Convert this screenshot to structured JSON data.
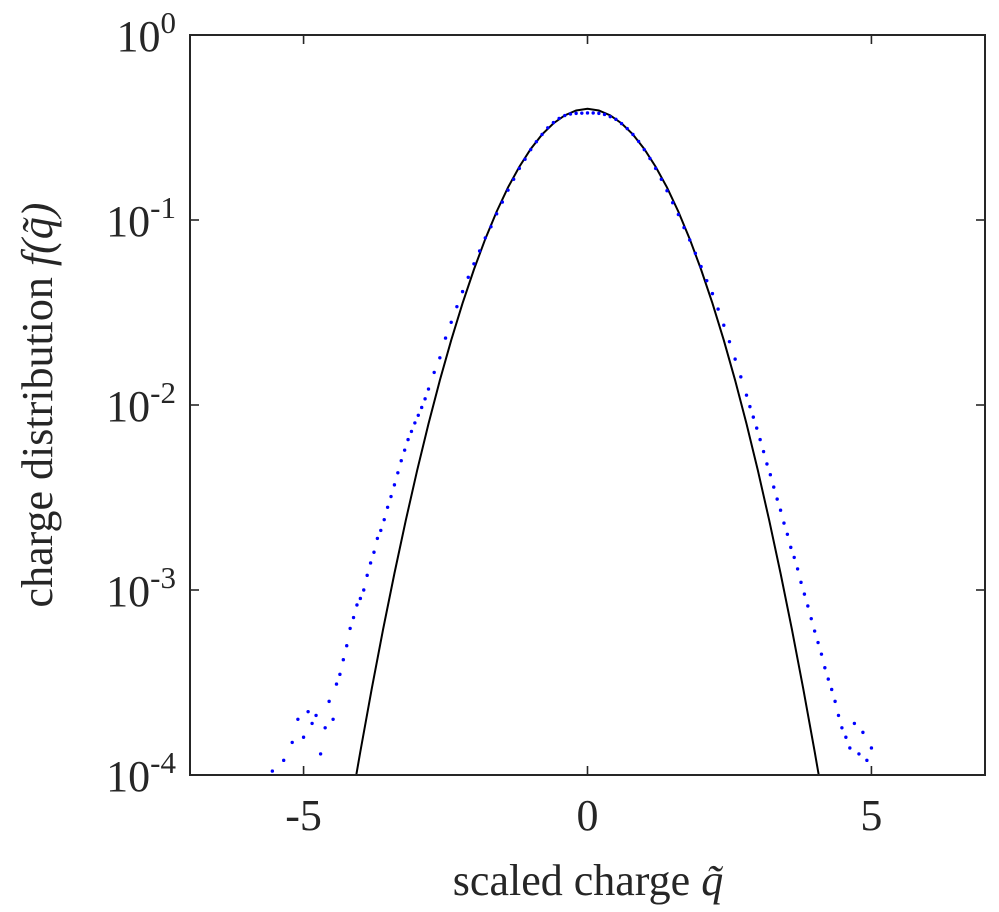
{
  "chart_data": {
    "type": "scatter",
    "xlabel": "scaled charge",
    "xlabel_symbol": "q̃",
    "ylabel": "charge distribution",
    "ylabel_symbol": "f(q̃)",
    "x_ticks": [
      "-5",
      "0",
      "5"
    ],
    "y_ticks": [
      {
        "value": 0.0001,
        "base": "10",
        "exp": "-4"
      },
      {
        "value": 0.001,
        "base": "10",
        "exp": "-3"
      },
      {
        "value": 0.01,
        "base": "10",
        "exp": "-2"
      },
      {
        "value": 0.1,
        "base": "10",
        "exp": "-1"
      },
      {
        "value": 1,
        "base": "10",
        "exp": "0"
      }
    ],
    "xlim": [
      -7,
      7
    ],
    "ylim": [
      0.0001,
      1
    ],
    "yscale": "log",
    "grid": false,
    "colors": {
      "data": "#0000ff",
      "fit": "#000000"
    },
    "series": [
      {
        "kind": "line",
        "color": "#000000",
        "x": [
          -4.1,
          -4.0,
          -3.8,
          -3.6,
          -3.4,
          -3.2,
          -3.0,
          -2.8,
          -2.6,
          -2.4,
          -2.2,
          -2.0,
          -1.8,
          -1.6,
          -1.4,
          -1.2,
          -1.0,
          -0.8,
          -0.6,
          -0.4,
          -0.2,
          0.0,
          0.2,
          0.4,
          0.6,
          0.8,
          1.0,
          1.2,
          1.4,
          1.6,
          1.8,
          2.0,
          2.2,
          2.4,
          2.6,
          2.8,
          3.0,
          3.2,
          3.4,
          3.6,
          3.8,
          4.0,
          4.1
        ],
        "y": [
          8.93e-05,
          0.000134,
          0.000292,
          0.000612,
          0.00123,
          0.00238,
          0.00443,
          0.00792,
          0.0136,
          0.0224,
          0.0355,
          0.054,
          0.079,
          0.111,
          0.15,
          0.194,
          0.242,
          0.29,
          0.333,
          0.368,
          0.391,
          0.399,
          0.391,
          0.368,
          0.333,
          0.29,
          0.242,
          0.194,
          0.15,
          0.111,
          0.079,
          0.054,
          0.0355,
          0.0224,
          0.0136,
          0.00792,
          0.00443,
          0.00238,
          0.00123,
          0.000612,
          0.000292,
          0.000134,
          8.93e-05
        ]
      },
      {
        "kind": "points",
        "color": "#0000ff",
        "x": [
          -5.55,
          -5.35,
          -5.2,
          -5.1,
          -5.0,
          -4.92,
          -4.85,
          -4.78,
          -4.7,
          -4.62,
          -4.55,
          -4.48,
          -4.42,
          -4.36,
          -4.3,
          -4.24,
          -4.18,
          -4.12,
          -4.06,
          -4.0,
          -3.94,
          -3.88,
          -3.82,
          -3.76,
          -3.7,
          -3.64,
          -3.58,
          -3.52,
          -3.46,
          -3.4,
          -3.34,
          -3.28,
          -3.22,
          -3.16,
          -3.1,
          -3.04,
          -2.98,
          -2.92,
          -2.86,
          -2.8,
          -2.7,
          -2.6,
          -2.5,
          -2.4,
          -2.3,
          -2.2,
          -2.1,
          -2.0,
          -1.9,
          -1.8,
          -1.7,
          -1.6,
          -1.5,
          -1.4,
          -1.3,
          -1.2,
          -1.1,
          -1.0,
          -0.9,
          -0.8,
          -0.7,
          -0.6,
          -0.5,
          -0.4,
          -0.3,
          -0.2,
          -0.1,
          0.0,
          0.1,
          0.2,
          0.3,
          0.4,
          0.5,
          0.6,
          0.7,
          0.8,
          0.9,
          1.0,
          1.1,
          1.2,
          1.3,
          1.4,
          1.5,
          1.6,
          1.7,
          1.8,
          1.9,
          2.0,
          2.1,
          2.2,
          2.3,
          2.4,
          2.5,
          2.6,
          2.7,
          2.8,
          2.86,
          2.92,
          2.98,
          3.04,
          3.1,
          3.16,
          3.22,
          3.28,
          3.34,
          3.4,
          3.46,
          3.52,
          3.58,
          3.64,
          3.7,
          3.76,
          3.82,
          3.88,
          3.94,
          4.0,
          4.06,
          4.12,
          4.18,
          4.24,
          4.3,
          4.36,
          4.42,
          4.48,
          4.55,
          4.62,
          4.7,
          4.78,
          4.85,
          4.92,
          5.0
        ],
        "y": [
          0.000105,
          0.00012,
          0.00015,
          0.0002,
          0.00016,
          0.00022,
          0.00019,
          0.00021,
          0.00013,
          0.00018,
          0.00025,
          0.0002,
          0.00031,
          0.00035,
          0.00042,
          0.0005,
          0.00062,
          0.00071,
          0.00083,
          0.0009,
          0.001,
          0.0012,
          0.0014,
          0.0016,
          0.0019,
          0.0021,
          0.0024,
          0.0028,
          0.0032,
          0.0037,
          0.0043,
          0.005,
          0.0057,
          0.0065,
          0.0072,
          0.008,
          0.0088,
          0.0097,
          0.0108,
          0.0122,
          0.015,
          0.018,
          0.023,
          0.028,
          0.034,
          0.041,
          0.049,
          0.058,
          0.068,
          0.08,
          0.092,
          0.108,
          0.125,
          0.145,
          0.166,
          0.19,
          0.213,
          0.24,
          0.265,
          0.29,
          0.315,
          0.336,
          0.354,
          0.367,
          0.374,
          0.377,
          0.378,
          0.379,
          0.379,
          0.377,
          0.372,
          0.362,
          0.35,
          0.332,
          0.312,
          0.29,
          0.266,
          0.24,
          0.215,
          0.19,
          0.166,
          0.144,
          0.124,
          0.107,
          0.091,
          0.078,
          0.066,
          0.056,
          0.047,
          0.04,
          0.033,
          0.027,
          0.022,
          0.0177,
          0.0142,
          0.0113,
          0.0098,
          0.0086,
          0.0075,
          0.0065,
          0.0056,
          0.0048,
          0.0042,
          0.0036,
          0.0031,
          0.0027,
          0.0023,
          0.002,
          0.0017,
          0.0015,
          0.0013,
          0.0011,
          0.00095,
          0.00082,
          0.0007,
          0.0006,
          0.00052,
          0.00045,
          0.00038,
          0.00033,
          0.00029,
          0.00025,
          0.00021,
          0.00018,
          0.00016,
          0.00014,
          0.00019,
          0.00013,
          0.00017,
          0.00012,
          0.00014
        ]
      }
    ]
  }
}
